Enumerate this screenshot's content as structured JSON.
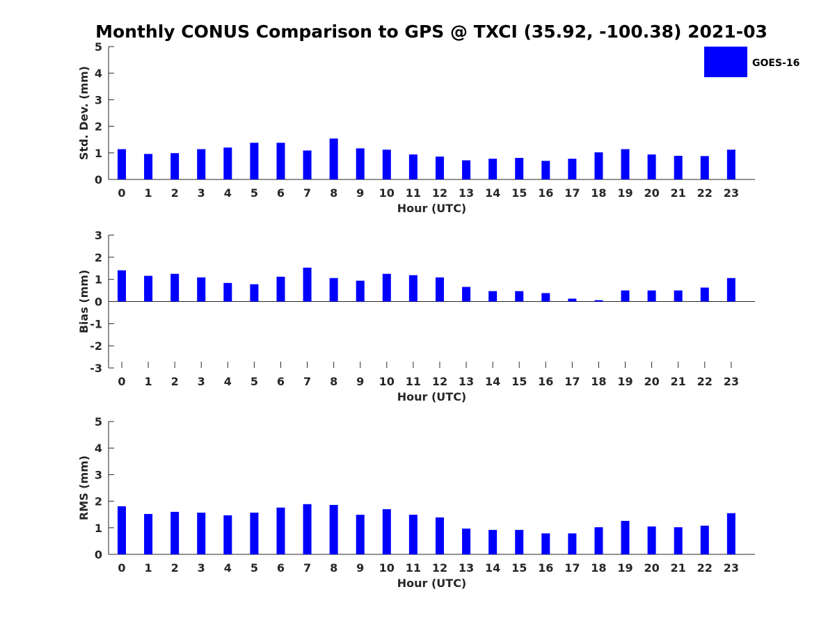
{
  "title": "Monthly CONUS Comparison to GPS @ TXCI (35.92, -100.38) 2021-03",
  "colors": {
    "bar": "#0000ff",
    "axis": "#262626",
    "text": "#262626"
  },
  "legend": {
    "label": "GOES-16",
    "color": "#0000ff",
    "position": "top-right"
  },
  "chart_data": [
    {
      "type": "bar",
      "xlabel": "Hour (UTC)",
      "ylabel": "Std. Dev. (mm)",
      "ylim": [
        0,
        5
      ],
      "yticks": [
        0,
        1,
        2,
        3,
        4,
        5
      ],
      "categories": [
        "0",
        "1",
        "2",
        "3",
        "4",
        "5",
        "6",
        "7",
        "8",
        "9",
        "10",
        "11",
        "12",
        "13",
        "14",
        "15",
        "16",
        "17",
        "18",
        "19",
        "20",
        "21",
        "22",
        "23"
      ],
      "series": [
        {
          "name": "GOES-16",
          "values": [
            1.14,
            0.96,
            0.99,
            1.14,
            1.2,
            1.38,
            1.38,
            1.09,
            1.54,
            1.17,
            1.12,
            0.94,
            0.86,
            0.72,
            0.78,
            0.81,
            0.7,
            0.78,
            1.02,
            1.14,
            0.94,
            0.89,
            0.88,
            1.12
          ]
        }
      ]
    },
    {
      "type": "bar",
      "xlabel": "Hour (UTC)",
      "ylabel": "Bias (mm)",
      "ylim": [
        -3,
        3
      ],
      "yticks": [
        -3,
        -2,
        -1,
        0,
        1,
        2,
        3
      ],
      "categories": [
        "0",
        "1",
        "2",
        "3",
        "4",
        "5",
        "6",
        "7",
        "8",
        "9",
        "10",
        "11",
        "12",
        "13",
        "14",
        "15",
        "16",
        "17",
        "18",
        "19",
        "20",
        "21",
        "22",
        "23"
      ],
      "series": [
        {
          "name": "GOES-16",
          "values": [
            1.41,
            1.16,
            1.25,
            1.09,
            0.84,
            0.78,
            1.12,
            1.53,
            1.06,
            0.94,
            1.25,
            1.19,
            1.09,
            0.66,
            0.47,
            0.47,
            0.38,
            0.13,
            0.06,
            0.5,
            0.5,
            0.5,
            0.63,
            1.06
          ]
        }
      ]
    },
    {
      "type": "bar",
      "xlabel": "Hour (UTC)",
      "ylabel": "RMS (mm)",
      "ylim": [
        0,
        5
      ],
      "yticks": [
        0,
        1,
        2,
        3,
        4,
        5
      ],
      "categories": [
        "0",
        "1",
        "2",
        "3",
        "4",
        "5",
        "6",
        "7",
        "8",
        "9",
        "10",
        "11",
        "12",
        "13",
        "14",
        "15",
        "16",
        "17",
        "18",
        "19",
        "20",
        "21",
        "22",
        "23"
      ],
      "series": [
        {
          "name": "GOES-16",
          "values": [
            1.81,
            1.52,
            1.6,
            1.57,
            1.47,
            1.57,
            1.76,
            1.89,
            1.86,
            1.49,
            1.7,
            1.49,
            1.39,
            0.97,
            0.92,
            0.92,
            0.79,
            0.79,
            1.02,
            1.26,
            1.05,
            1.02,
            1.08,
            1.55
          ]
        }
      ]
    }
  ]
}
